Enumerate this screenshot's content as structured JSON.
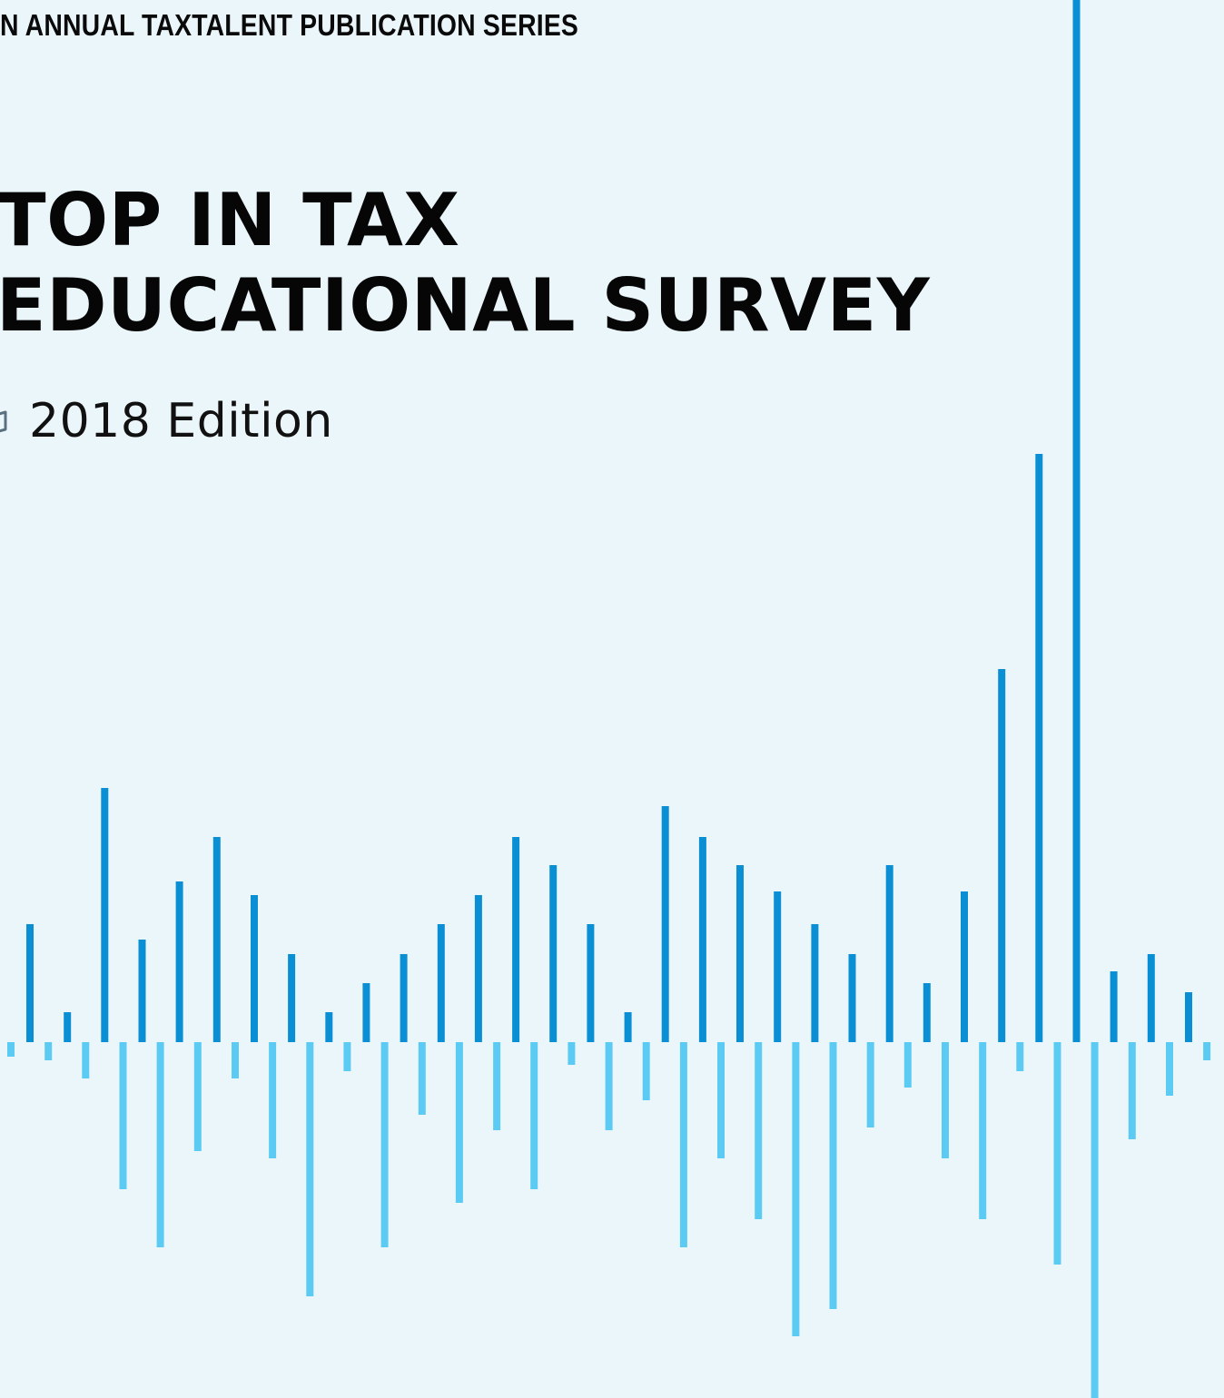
{
  "cover": {
    "series_label": "N ANNUAL TAXTALENT PUBLICATION SERIES",
    "title_line_1": "TOP IN TAX",
    "title_line_2": "EDUCATIONAL SURVEY",
    "edition_icon": "book-icon",
    "edition": "2018 Edition"
  },
  "colors": {
    "background": "#ebf6fb",
    "text": "#0a0a0a",
    "bar_up": "#0a8fd4",
    "bar_down": "#5ccbf3",
    "icon": "#5a6f80"
  },
  "chart_data": {
    "type": "bar",
    "title": "",
    "xlabel": "",
    "ylabel": "",
    "grid": false,
    "legend": "none",
    "ylim": [
      -392,
      1148
    ],
    "series": [
      {
        "color": "#0a8fd4",
        "values": [
          130,
          33,
          280,
          113,
          177,
          226,
          162,
          97,
          33,
          65,
          97,
          130,
          162,
          226,
          195,
          130,
          33,
          260,
          226,
          195,
          166,
          130,
          97,
          195,
          65,
          166,
          411,
          648,
          1148,
          78,
          97,
          55
        ]
      },
      {
        "color": "#5ccbf3",
        "values": [
          -16,
          -20,
          -40,
          -162,
          -226,
          -120,
          -40,
          -128,
          -280,
          -32,
          -226,
          -80,
          -177,
          -97,
          -162,
          -25,
          -97,
          -64,
          -226,
          -128,
          -195,
          -324,
          -294,
          -94,
          -50,
          -128,
          -195,
          -32,
          -245,
          -392,
          -107,
          -59,
          -20
        ]
      }
    ]
  }
}
